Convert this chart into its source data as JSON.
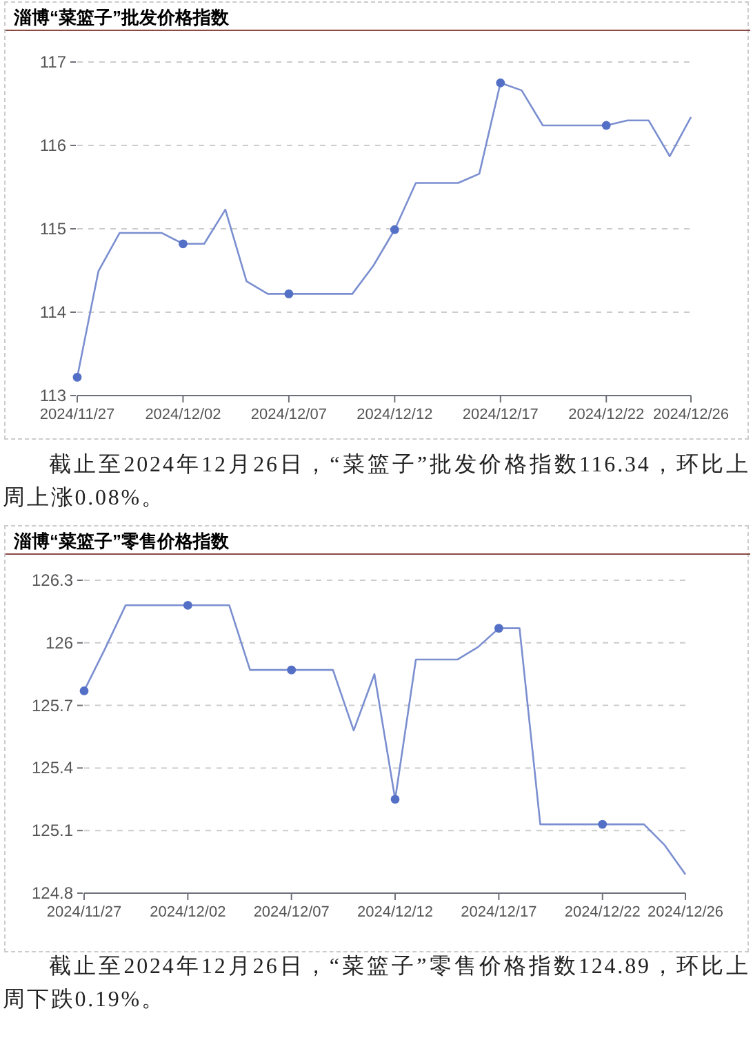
{
  "chart_data": [
    {
      "type": "line",
      "title": "淄博“菜篮子”批发价格指数",
      "x": [
        "2024-11-27",
        "2024-11-28",
        "2024-11-29",
        "2024-11-30",
        "2024-12-01",
        "2024-12-02",
        "2024-12-03",
        "2024-12-04",
        "2024-12-05",
        "2024-12-06",
        "2024-12-07",
        "2024-12-08",
        "2024-12-09",
        "2024-12-10",
        "2024-12-11",
        "2024-12-12",
        "2024-12-13",
        "2024-12-14",
        "2024-12-15",
        "2024-12-16",
        "2024-12-17",
        "2024-12-18",
        "2024-12-19",
        "2024-12-20",
        "2024-12-21",
        "2024-12-22",
        "2024-12-23",
        "2024-12-24",
        "2024-12-25",
        "2024-12-26"
      ],
      "series": [
        {
          "color": "#7b8fd0",
          "values": [
            113.22,
            114.49,
            114.95,
            114.95,
            114.95,
            114.82,
            114.82,
            115.23,
            114.37,
            114.22,
            114.22,
            114.22,
            114.22,
            114.22,
            114.56,
            114.99,
            115.55,
            115.55,
            115.55,
            115.66,
            116.75,
            116.66,
            116.24,
            116.24,
            116.24,
            116.24,
            116.3,
            116.3,
            115.87,
            116.34
          ]
        }
      ],
      "xlim": [
        "2024-11-27",
        "2024-12-26"
      ],
      "xticks": [
        {
          "value": "2024-11-27",
          "label": "2024/11/27"
        },
        {
          "value": "2024-12-02",
          "label": "2024/12/02"
        },
        {
          "value": "2024-12-07",
          "label": "2024/12/07"
        },
        {
          "value": "2024-12-12",
          "label": "2024/12/12"
        },
        {
          "value": "2024-12-17",
          "label": "2024/12/17"
        },
        {
          "value": "2024-12-22",
          "label": "2024/12/22"
        },
        {
          "value": "2024-12-26",
          "label": "2024/12/26"
        }
      ],
      "ylim": [
        113,
        117
      ],
      "yticks": [
        113,
        114,
        115,
        116,
        117
      ],
      "grid": "y",
      "annotations": [
        "截止至2024年12月26日，“菜篮子”批发价格指数116.34，环比上周上涨0.08%。"
      ]
    },
    {
      "type": "line",
      "title": "淄博“菜篮子”零售价格指数",
      "x": [
        "2024-11-27",
        "2024-11-28",
        "2024-11-29",
        "2024-11-30",
        "2024-12-01",
        "2024-12-02",
        "2024-12-03",
        "2024-12-04",
        "2024-12-05",
        "2024-12-06",
        "2024-12-07",
        "2024-12-08",
        "2024-12-09",
        "2024-12-10",
        "2024-12-11",
        "2024-12-12",
        "2024-12-13",
        "2024-12-14",
        "2024-12-15",
        "2024-12-16",
        "2024-12-17",
        "2024-12-18",
        "2024-12-19",
        "2024-12-20",
        "2024-12-21",
        "2024-12-22",
        "2024-12-23",
        "2024-12-24",
        "2024-12-25",
        "2024-12-26"
      ],
      "series": [
        {
          "color": "#7b8fd0",
          "values": [
            125.77,
            125.97,
            126.18,
            126.18,
            126.18,
            126.18,
            126.18,
            126.18,
            125.87,
            125.87,
            125.87,
            125.87,
            125.87,
            125.58,
            125.85,
            125.25,
            125.92,
            125.92,
            125.92,
            125.98,
            126.07,
            126.07,
            125.13,
            125.13,
            125.13,
            125.13,
            125.13,
            125.13,
            125.03,
            124.89
          ]
        }
      ],
      "xlim": [
        "2024-11-27",
        "2024-12-26"
      ],
      "xticks": [
        {
          "value": "2024-11-27",
          "label": "2024/11/27"
        },
        {
          "value": "2024-12-02",
          "label": "2024/12/02"
        },
        {
          "value": "2024-12-07",
          "label": "2024/12/07"
        },
        {
          "value": "2024-12-12",
          "label": "2024/12/12"
        },
        {
          "value": "2024-12-17",
          "label": "2024/12/17"
        },
        {
          "value": "2024-12-22",
          "label": "2024/12/22"
        },
        {
          "value": "2024-12-26",
          "label": "2024/12/26"
        }
      ],
      "ylim": [
        124.8,
        126.3
      ],
      "yticks": [
        124.8,
        125.1,
        125.4,
        125.7,
        126,
        126.3
      ],
      "grid": "y",
      "annotations": [
        "截止至2024年12月26日，“菜篮子”零售价格指数124.89，环比上周下跌0.19%。"
      ]
    }
  ]
}
